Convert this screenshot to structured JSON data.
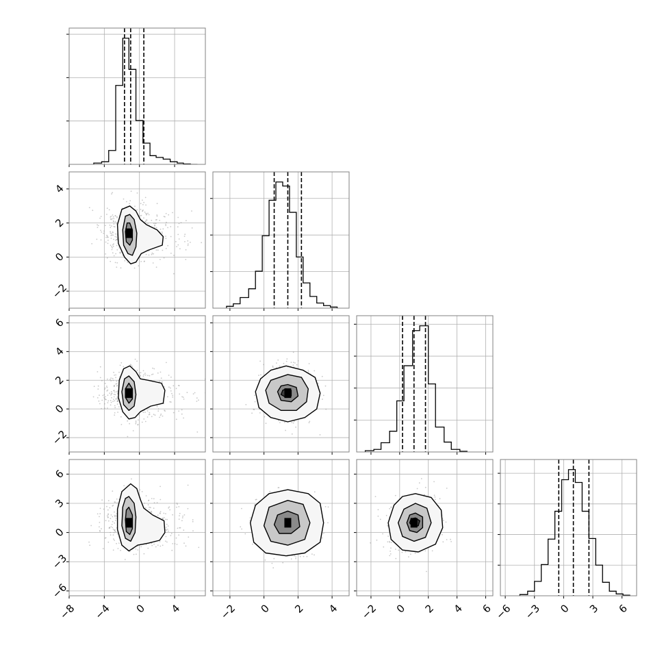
{
  "chart_data": {
    "type": "corner",
    "n_params": 4,
    "grid": true,
    "colors": {
      "line": "#000000",
      "grid": "#b0b0b0",
      "scatter": "#9a9a9a",
      "frame": "#000000"
    },
    "axes": [
      {
        "range": [
          -8,
          7.5
        ],
        "ticks": [
          -8,
          -4,
          0,
          4
        ],
        "tick_labels": [
          "−8",
          "−4",
          "0",
          "4"
        ]
      },
      {
        "range": [
          -3,
          5
        ],
        "ticks": [
          -2,
          0,
          2,
          4
        ],
        "tick_labels": [
          "−2",
          "0",
          "2",
          "4"
        ]
      },
      {
        "range": [
          -3,
          6.5
        ],
        "ticks": [
          -2,
          0,
          2,
          4,
          6
        ],
        "tick_labels": [
          "−2",
          "0",
          "2",
          "4",
          "6"
        ]
      },
      {
        "range": [
          -6.5,
          7.5
        ],
        "ticks": [
          -6,
          -3,
          0,
          3,
          6
        ],
        "tick_labels": [
          "−6",
          "−3",
          "0",
          "3",
          "6"
        ]
      }
    ],
    "histograms": [
      {
        "param": 0,
        "bin_edges": [
          -5.2,
          -4.3,
          -3.5,
          -2.7,
          -1.9,
          -1.2,
          -0.4,
          0.4,
          1.2,
          1.9,
          2.7,
          3.5,
          4.3,
          5.0,
          5.8,
          6.6
        ],
        "counts": [
          0.3,
          0.6,
          3.2,
          18.2,
          29.1,
          21.9,
          10.1,
          4.9,
          2.0,
          1.6,
          1.2,
          0.6,
          0.3,
          0.1,
          0.0
        ],
        "yticks": [
          10,
          20,
          30
        ],
        "quantiles": [
          -1.7,
          -1.0,
          0.5
        ]
      },
      {
        "param": 1,
        "bin_edges": [
          -2.2,
          -1.8,
          -1.4,
          -0.9,
          -0.5,
          -0.1,
          0.3,
          0.7,
          1.1,
          1.5,
          1.9,
          2.3,
          2.7,
          3.1,
          3.5,
          3.9,
          4.3
        ],
        "counts": [
          0.5,
          1.2,
          2.9,
          5.3,
          10.1,
          19.8,
          29.5,
          34.5,
          33.4,
          26.2,
          14.0,
          6.9,
          3.2,
          1.4,
          0.7,
          0.3
        ],
        "yticks": [
          10,
          20,
          30
        ],
        "quantiles": [
          0.6,
          1.4,
          2.2
        ]
      },
      {
        "param": 2,
        "bin_edges": [
          -2.4,
          -1.8,
          -1.3,
          -0.7,
          -0.2,
          0.3,
          0.9,
          1.4,
          2.0,
          2.5,
          3.1,
          3.6,
          4.2,
          4.7
        ],
        "counts": [
          0.4,
          0.8,
          2.9,
          6.5,
          16.0,
          27.0,
          38.0,
          39.5,
          21.3,
          7.8,
          3.1,
          0.8,
          0.2
        ],
        "yticks": [
          10,
          20,
          30,
          40
        ],
        "quantiles": [
          0.2,
          1.0,
          1.8
        ]
      },
      {
        "param": 3,
        "bin_edges": [
          -4.5,
          -3.7,
          -3.0,
          -2.3,
          -1.6,
          -0.9,
          -0.2,
          0.5,
          1.2,
          1.9,
          2.6,
          3.3,
          4.0,
          4.7,
          5.4,
          6.1,
          6.8
        ],
        "counts": [
          0.4,
          1.5,
          4.7,
          10.2,
          18.5,
          27.6,
          37.9,
          41.2,
          37.0,
          27.6,
          18.7,
          10.0,
          4.4,
          1.5,
          0.6,
          0.2
        ],
        "yticks": [
          10,
          20,
          30,
          40
        ],
        "quantiles": [
          -0.5,
          1.0,
          2.6
        ]
      }
    ],
    "pairs": [
      {
        "x_param": 0,
        "y_param": 1,
        "center": [
          -1.2,
          1.4
        ],
        "contours": [
          [
            [
              -1.1,
              3.0
            ],
            [
              -0.4,
              2.7
            ],
            [
              0.1,
              2.2
            ],
            [
              0.8,
              1.9
            ],
            [
              2.0,
              1.6
            ],
            [
              2.7,
              1.2
            ],
            [
              2.6,
              0.7
            ],
            [
              1.0,
              0.4
            ],
            [
              0.2,
              0.2
            ],
            [
              -0.4,
              -0.3
            ],
            [
              -1.0,
              -0.4
            ],
            [
              -1.7,
              0.0
            ],
            [
              -2.4,
              0.8
            ],
            [
              -2.5,
              1.9
            ],
            [
              -2.0,
              2.8
            ]
          ],
          [
            [
              -1.1,
              2.5
            ],
            [
              -0.6,
              2.2
            ],
            [
              -0.3,
              1.4
            ],
            [
              -0.4,
              0.6
            ],
            [
              -0.8,
              0.1
            ],
            [
              -1.3,
              0.2
            ],
            [
              -1.8,
              0.7
            ],
            [
              -1.9,
              1.6
            ],
            [
              -1.6,
              2.4
            ]
          ],
          [
            [
              -1.1,
              2.0
            ],
            [
              -0.8,
              1.6
            ],
            [
              -0.8,
              1.0
            ],
            [
              -1.1,
              0.7
            ],
            [
              -1.5,
              0.9
            ],
            [
              -1.6,
              1.5
            ],
            [
              -1.4,
              2.0
            ]
          ]
        ]
      },
      {
        "x_param": 0,
        "y_param": 2,
        "center": [
          -1.2,
          1.1
        ],
        "contours": [
          [
            [
              -1.1,
              3.0
            ],
            [
              -0.4,
              2.6
            ],
            [
              0.1,
              2.1
            ],
            [
              1.0,
              2.0
            ],
            [
              2.5,
              1.8
            ],
            [
              2.9,
              1.3
            ],
            [
              2.7,
              0.4
            ],
            [
              1.3,
              0.2
            ],
            [
              0.1,
              -0.2
            ],
            [
              -0.5,
              -0.6
            ],
            [
              -1.2,
              -0.7
            ],
            [
              -1.9,
              -0.2
            ],
            [
              -2.4,
              0.8
            ],
            [
              -2.3,
              2.0
            ],
            [
              -1.8,
              2.8
            ]
          ],
          [
            [
              -1.2,
              2.3
            ],
            [
              -0.6,
              1.9
            ],
            [
              -0.4,
              1.0
            ],
            [
              -0.6,
              0.2
            ],
            [
              -1.2,
              -0.1
            ],
            [
              -1.8,
              0.3
            ],
            [
              -2.0,
              1.2
            ],
            [
              -1.7,
              2.1
            ]
          ],
          [
            [
              -1.2,
              1.8
            ],
            [
              -0.8,
              1.4
            ],
            [
              -0.8,
              0.7
            ],
            [
              -1.2,
              0.4
            ],
            [
              -1.6,
              0.8
            ],
            [
              -1.6,
              1.4
            ]
          ]
        ]
      },
      {
        "x_param": 0,
        "y_param": 3,
        "center": [
          -1.2,
          1.0
        ],
        "contours": [
          [
            [
              -1.0,
              5.0
            ],
            [
              -0.3,
              4.5
            ],
            [
              0.1,
              3.4
            ],
            [
              0.5,
              2.5
            ],
            [
              1.5,
              1.8
            ],
            [
              2.8,
              1.2
            ],
            [
              2.9,
              0.0
            ],
            [
              2.3,
              -0.8
            ],
            [
              1.0,
              -1.1
            ],
            [
              -0.2,
              -1.3
            ],
            [
              -1.2,
              -1.9
            ],
            [
              -2.0,
              -1.3
            ],
            [
              -2.5,
              0.3
            ],
            [
              -2.5,
              2.4
            ],
            [
              -2.0,
              4.2
            ]
          ],
          [
            [
              -1.2,
              3.7
            ],
            [
              -0.6,
              3.0
            ],
            [
              -0.4,
              1.6
            ],
            [
              -0.5,
              0.0
            ],
            [
              -1.0,
              -0.9
            ],
            [
              -1.6,
              -0.6
            ],
            [
              -2.0,
              0.7
            ],
            [
              -1.9,
              2.6
            ],
            [
              -1.6,
              3.5
            ]
          ],
          [
            [
              -1.2,
              2.6
            ],
            [
              -0.8,
              1.8
            ],
            [
              -0.8,
              0.4
            ],
            [
              -1.1,
              -0.2
            ],
            [
              -1.5,
              0.1
            ],
            [
              -1.6,
              1.3
            ],
            [
              -1.5,
              2.3
            ]
          ]
        ]
      },
      {
        "x_param": 1,
        "y_param": 2,
        "center": [
          1.4,
          1.1
        ],
        "contours": [
          [
            [
              1.3,
              3.0
            ],
            [
              2.3,
              2.7
            ],
            [
              3.0,
              2.2
            ],
            [
              3.3,
              1.1
            ],
            [
              3.1,
              0.0
            ],
            [
              2.4,
              -0.6
            ],
            [
              1.4,
              -0.9
            ],
            [
              0.4,
              -0.6
            ],
            [
              -0.3,
              0.1
            ],
            [
              -0.5,
              1.2
            ],
            [
              -0.2,
              2.1
            ],
            [
              0.4,
              2.7
            ]
          ],
          [
            [
              1.4,
              2.4
            ],
            [
              2.2,
              2.2
            ],
            [
              2.6,
              1.4
            ],
            [
              2.5,
              0.5
            ],
            [
              1.9,
              -0.1
            ],
            [
              1.0,
              -0.1
            ],
            [
              0.3,
              0.4
            ],
            [
              0.1,
              1.3
            ],
            [
              0.4,
              2.0
            ]
          ],
          [
            [
              1.4,
              1.7
            ],
            [
              1.9,
              1.5
            ],
            [
              2.0,
              0.9
            ],
            [
              1.6,
              0.5
            ],
            [
              1.0,
              0.6
            ],
            [
              0.8,
              1.2
            ],
            [
              1.0,
              1.6
            ]
          ],
          [
            [
              1.3,
              1.4
            ],
            [
              1.6,
              1.3
            ],
            [
              1.6,
              0.9
            ],
            [
              1.3,
              0.8
            ],
            [
              1.0,
              1.0
            ],
            [
              1.1,
              1.3
            ]
          ]
        ]
      },
      {
        "x_param": 1,
        "y_param": 3,
        "center": [
          1.4,
          1.0
        ],
        "contours": [
          [
            [
              1.4,
              4.4
            ],
            [
              2.6,
              4.0
            ],
            [
              3.3,
              3.0
            ],
            [
              3.5,
              1.0
            ],
            [
              3.3,
              -1.0
            ],
            [
              2.4,
              -2.1
            ],
            [
              1.3,
              -2.4
            ],
            [
              0.1,
              -2.1
            ],
            [
              -0.6,
              -1.0
            ],
            [
              -0.8,
              1.0
            ],
            [
              -0.5,
              2.8
            ],
            [
              0.3,
              4.0
            ]
          ],
          [
            [
              1.4,
              3.3
            ],
            [
              2.3,
              2.9
            ],
            [
              2.7,
              1.0
            ],
            [
              2.4,
              -0.7
            ],
            [
              1.4,
              -1.3
            ],
            [
              0.4,
              -0.9
            ],
            [
              0.0,
              0.7
            ],
            [
              0.3,
              2.6
            ]
          ],
          [
            [
              1.4,
              2.2
            ],
            [
              2.0,
              1.8
            ],
            [
              2.1,
              0.6
            ],
            [
              1.6,
              -0.1
            ],
            [
              0.9,
              -0.1
            ],
            [
              0.6,
              0.8
            ],
            [
              0.8,
              1.8
            ]
          ]
        ]
      },
      {
        "x_param": 2,
        "y_param": 3,
        "center": [
          1.0,
          1.0
        ],
        "contours": [
          [
            [
              1.1,
              4.0
            ],
            [
              2.2,
              3.6
            ],
            [
              2.9,
              2.3
            ],
            [
              3.0,
              0.5
            ],
            [
              2.5,
              -1.2
            ],
            [
              1.3,
              -2.0
            ],
            [
              0.2,
              -1.8
            ],
            [
              -0.6,
              -0.7
            ],
            [
              -0.8,
              1.0
            ],
            [
              -0.4,
              2.8
            ],
            [
              0.2,
              3.7
            ]
          ],
          [
            [
              1.1,
              3.0
            ],
            [
              1.9,
              2.5
            ],
            [
              2.2,
              1.0
            ],
            [
              1.8,
              -0.5
            ],
            [
              1.0,
              -0.9
            ],
            [
              0.2,
              -0.4
            ],
            [
              -0.1,
              1.0
            ],
            [
              0.3,
              2.4
            ]
          ],
          [
            [
              1.1,
              2.0
            ],
            [
              1.6,
              1.6
            ],
            [
              1.6,
              0.5
            ],
            [
              1.2,
              0.0
            ],
            [
              0.7,
              0.2
            ],
            [
              0.5,
              1.0
            ],
            [
              0.7,
              1.8
            ]
          ],
          [
            [
              1.1,
              1.5
            ],
            [
              1.4,
              1.2
            ],
            [
              1.3,
              0.7
            ],
            [
              0.9,
              0.6
            ],
            [
              0.7,
              1.0
            ],
            [
              0.8,
              1.4
            ]
          ]
        ]
      }
    ]
  }
}
